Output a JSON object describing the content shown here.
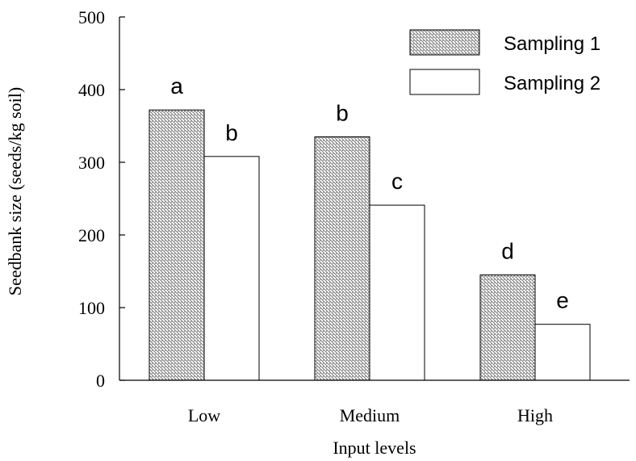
{
  "chart_data": {
    "type": "bar",
    "categories": [
      "Low",
      "Medium",
      "High"
    ],
    "series": [
      {
        "name": "Sampling 1",
        "values": [
          372,
          335,
          145
        ],
        "labels": [
          "a",
          "b",
          "d"
        ],
        "pattern": "hatched"
      },
      {
        "name": "Sampling 2",
        "values": [
          308,
          241,
          77
        ],
        "labels": [
          "b",
          "c",
          "e"
        ],
        "pattern": "white"
      }
    ],
    "xlabel": "Input levels",
    "ylabel": "Seedbank size (seeds/kg soil)",
    "ylim": [
      0,
      500
    ],
    "yticks": [
      "0",
      "100",
      "200",
      "300",
      "400",
      "500"
    ],
    "grid": false,
    "legend_position": "top-right"
  }
}
